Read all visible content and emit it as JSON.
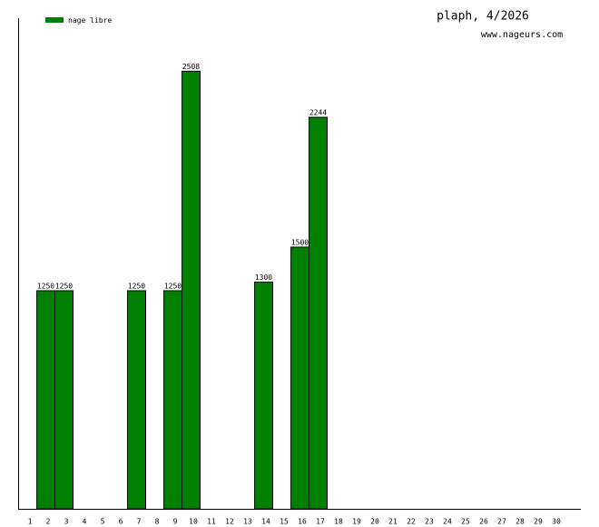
{
  "chart_data": {
    "type": "bar",
    "title": "plaph, 4/2026",
    "subtitle": "www.nageurs.com",
    "categories": [
      "1",
      "2",
      "3",
      "4",
      "5",
      "6",
      "7",
      "8",
      "9",
      "10",
      "11",
      "12",
      "13",
      "14",
      "15",
      "16",
      "17",
      "18",
      "19",
      "20",
      "21",
      "22",
      "23",
      "24",
      "25",
      "26",
      "27",
      "28",
      "29",
      "30"
    ],
    "series": [
      {
        "name": "nage libre",
        "color": "#008000",
        "values": [
          null,
          1250,
          1250,
          null,
          null,
          null,
          1250,
          null,
          1250,
          2508,
          null,
          null,
          null,
          1300,
          null,
          1500,
          2244,
          null,
          null,
          null,
          null,
          null,
          null,
          null,
          null,
          null,
          null,
          null,
          null,
          null
        ]
      }
    ],
    "ylim": [
      0,
      2812
    ]
  }
}
